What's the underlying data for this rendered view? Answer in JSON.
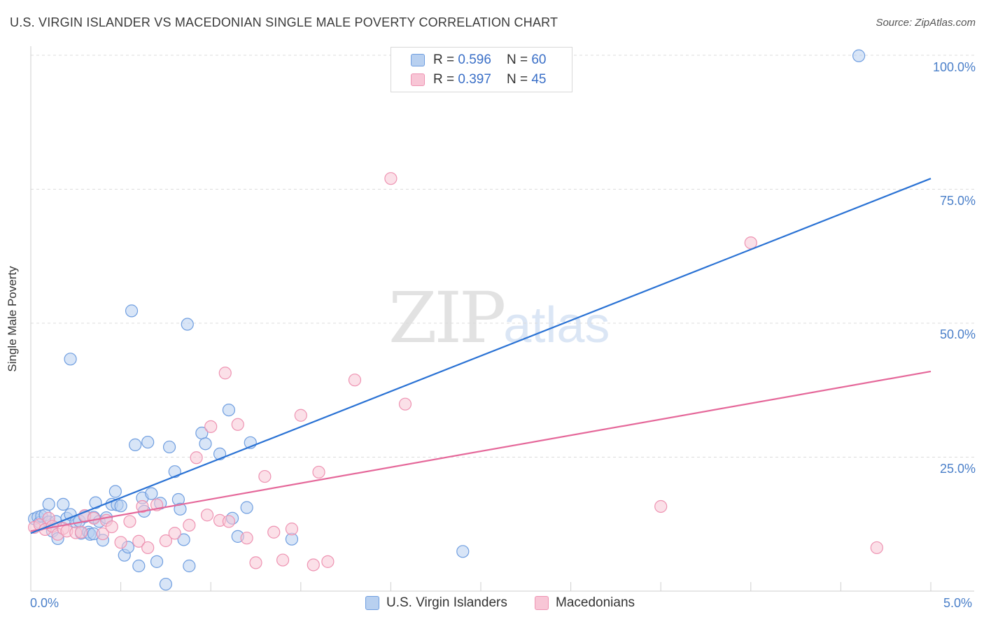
{
  "title": "U.S. VIRGIN ISLANDER VS MACEDONIAN SINGLE MALE POVERTY CORRELATION CHART",
  "source": "Source: ZipAtlas.com",
  "watermark": {
    "zip": "ZIP",
    "atlas": "atlas"
  },
  "legend": {
    "r_label": "R =",
    "n_label": "N =",
    "rows": [
      {
        "r": "0.596",
        "n": "60"
      },
      {
        "r": "0.397",
        "n": "45"
      }
    ]
  },
  "colors": {
    "blue_fill": "#b8d0f0",
    "blue_stroke": "#6f9ee0",
    "blue_line": "#2a72d4",
    "pink_fill": "#f8c6d6",
    "pink_stroke": "#ee93b2",
    "pink_line": "#e5689a"
  },
  "chart_data": {
    "type": "scatter",
    "xlabel": "",
    "ylabel": "Single Male Poverty",
    "xlim": [
      0,
      5
    ],
    "ylim": [
      0,
      100
    ],
    "x_tick_labels": [
      "0.0%",
      "5.0%"
    ],
    "y_tick_labels": [
      "100.0%",
      "75.0%",
      "50.0%",
      "25.0%"
    ],
    "y_ticks": [
      100,
      75,
      50,
      25
    ],
    "grid": true,
    "series": [
      {
        "name": "U.S. Virgin Islanders",
        "r": 0.596,
        "n": 60,
        "trend": [
          [
            0,
            10.8
          ],
          [
            5,
            77
          ]
        ],
        "points": [
          [
            0.02,
            13.5
          ],
          [
            0.04,
            13.8
          ],
          [
            0.05,
            12.8
          ],
          [
            0.06,
            14.0
          ],
          [
            0.08,
            14.2
          ],
          [
            0.1,
            12.9
          ],
          [
            0.12,
            11.2
          ],
          [
            0.14,
            13.0
          ],
          [
            0.15,
            9.8
          ],
          [
            0.18,
            16.2
          ],
          [
            0.2,
            13.6
          ],
          [
            0.22,
            14.3
          ],
          [
            0.25,
            12.9
          ],
          [
            0.27,
            13.1
          ],
          [
            0.28,
            10.8
          ],
          [
            0.3,
            13.9
          ],
          [
            0.32,
            11.0
          ],
          [
            0.33,
            10.6
          ],
          [
            0.35,
            13.8
          ],
          [
            0.36,
            16.5
          ],
          [
            0.38,
            13.0
          ],
          [
            0.4,
            9.5
          ],
          [
            0.42,
            13.7
          ],
          [
            0.45,
            16.2
          ],
          [
            0.47,
            18.6
          ],
          [
            0.48,
            16.1
          ],
          [
            0.5,
            15.9
          ],
          [
            0.52,
            6.7
          ],
          [
            0.54,
            8.2
          ],
          [
            0.56,
            52.3
          ],
          [
            0.58,
            27.3
          ],
          [
            0.6,
            4.7
          ],
          [
            0.62,
            17.4
          ],
          [
            0.63,
            14.9
          ],
          [
            0.65,
            27.8
          ],
          [
            0.67,
            18.2
          ],
          [
            0.7,
            5.5
          ],
          [
            0.72,
            16.4
          ],
          [
            0.75,
            1.3
          ],
          [
            0.77,
            26.9
          ],
          [
            0.8,
            22.3
          ],
          [
            0.82,
            17.1
          ],
          [
            0.83,
            15.3
          ],
          [
            0.85,
            9.6
          ],
          [
            0.87,
            49.8
          ],
          [
            0.88,
            4.7
          ],
          [
            0.95,
            29.5
          ],
          [
            0.97,
            27.5
          ],
          [
            1.05,
            25.6
          ],
          [
            1.1,
            33.8
          ],
          [
            1.12,
            13.6
          ],
          [
            1.15,
            10.2
          ],
          [
            1.2,
            15.6
          ],
          [
            1.22,
            27.7
          ],
          [
            1.45,
            9.7
          ],
          [
            2.4,
            7.4
          ],
          [
            4.6,
            99.9
          ],
          [
            0.1,
            16.2
          ],
          [
            0.35,
            10.7
          ],
          [
            0.22,
            43.3
          ]
        ]
      },
      {
        "name": "Macedonians",
        "r": 0.397,
        "n": 45,
        "trend": [
          [
            0,
            11.2
          ],
          [
            5,
            41
          ]
        ],
        "points": [
          [
            0.02,
            11.9
          ],
          [
            0.05,
            12.4
          ],
          [
            0.08,
            11.5
          ],
          [
            0.1,
            13.6
          ],
          [
            0.12,
            12.1
          ],
          [
            0.15,
            10.6
          ],
          [
            0.18,
            11.7
          ],
          [
            0.2,
            11.2
          ],
          [
            0.25,
            10.9
          ],
          [
            0.28,
            11.0
          ],
          [
            0.3,
            14.1
          ],
          [
            0.35,
            13.6
          ],
          [
            0.4,
            10.7
          ],
          [
            0.42,
            13.2
          ],
          [
            0.45,
            12.0
          ],
          [
            0.5,
            9.1
          ],
          [
            0.55,
            13.0
          ],
          [
            0.6,
            9.3
          ],
          [
            0.62,
            15.8
          ],
          [
            0.65,
            8.1
          ],
          [
            0.7,
            16.1
          ],
          [
            0.75,
            9.4
          ],
          [
            0.8,
            10.8
          ],
          [
            0.88,
            12.3
          ],
          [
            0.92,
            24.9
          ],
          [
            0.98,
            14.2
          ],
          [
            1.0,
            30.7
          ],
          [
            1.05,
            13.2
          ],
          [
            1.08,
            40.7
          ],
          [
            1.1,
            13.0
          ],
          [
            1.15,
            31.1
          ],
          [
            1.2,
            9.9
          ],
          [
            1.25,
            5.3
          ],
          [
            1.3,
            21.4
          ],
          [
            1.35,
            11.0
          ],
          [
            1.4,
            5.8
          ],
          [
            1.45,
            11.6
          ],
          [
            1.5,
            32.8
          ],
          [
            1.57,
            4.9
          ],
          [
            1.6,
            22.2
          ],
          [
            1.65,
            5.5
          ],
          [
            1.8,
            39.4
          ],
          [
            2.0,
            77.0
          ],
          [
            2.08,
            34.9
          ],
          [
            3.5,
            15.8
          ]
        ]
      }
    ]
  },
  "extra_pink": [
    [
      4.0,
      65.0
    ],
    [
      4.7,
      8.1
    ]
  ],
  "bottom_legend": [
    "U.S. Virgin Islanders",
    "Macedonians"
  ]
}
